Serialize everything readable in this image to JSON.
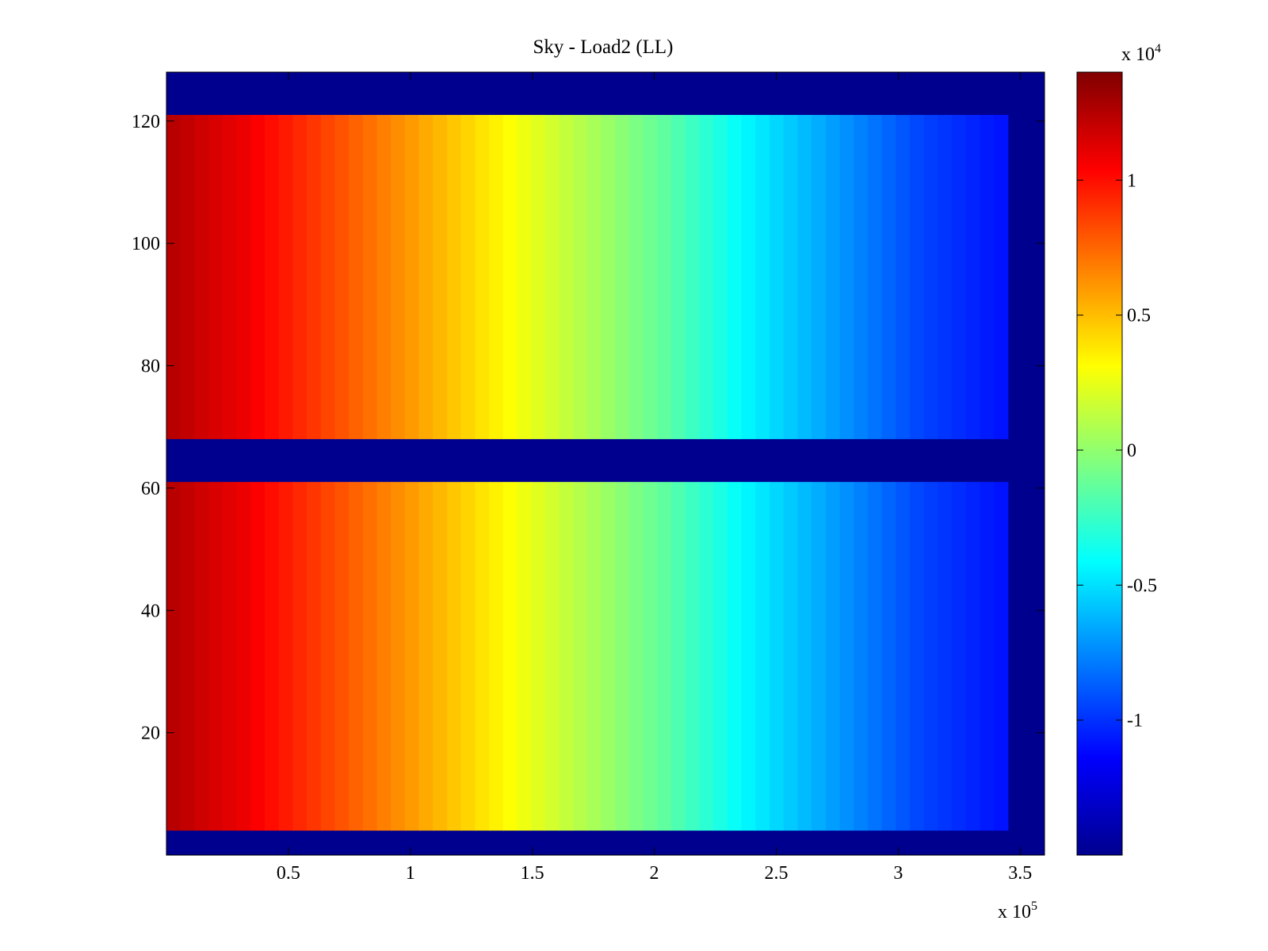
{
  "chart_data": {
    "type": "heatmap",
    "title": "Sky - Load2 (LL)",
    "xlabel": "",
    "ylabel": "",
    "x_multiplier_label": {
      "base": "x 10",
      "exponent": "5"
    },
    "xlim": [
      0,
      360000
    ],
    "ylim": [
      0,
      128
    ],
    "x_ticks": [
      50000,
      100000,
      150000,
      200000,
      250000,
      300000,
      350000
    ],
    "x_tick_labels": [
      "0.5",
      "1",
      "1.5",
      "2",
      "2.5",
      "3",
      "3.5"
    ],
    "y_ticks": [
      20,
      40,
      60,
      80,
      100,
      120
    ],
    "y_tick_labels": [
      "20",
      "40",
      "60",
      "80",
      "100",
      "120"
    ],
    "colormap": "jet",
    "background_color": "#00008F",
    "populated_row_ranges": [
      [
        4,
        61
      ],
      [
        68,
        121
      ]
    ],
    "populated_x_range": [
      0,
      345000
    ],
    "x_gradient": [
      {
        "x": 0,
        "value": 12500
      },
      {
        "x": 30000,
        "value": 11000
      },
      {
        "x": 65000,
        "value": 8500
      },
      {
        "x": 100000,
        "value": 6000
      },
      {
        "x": 135000,
        "value": 3500
      },
      {
        "x": 170000,
        "value": 1000
      },
      {
        "x": 205000,
        "value": -1500
      },
      {
        "x": 240000,
        "value": -4500
      },
      {
        "x": 275000,
        "value": -7000
      },
      {
        "x": 310000,
        "value": -9500
      },
      {
        "x": 345000,
        "value": -11000
      }
    ],
    "colorbar": {
      "range": [
        -15000,
        14000
      ],
      "ticks": [
        -10000,
        -5000,
        0,
        5000,
        10000
      ],
      "tick_labels": [
        "-1",
        "-0.5",
        "0",
        "0.5",
        "1"
      ],
      "multiplier_label": {
        "base": "x 10",
        "exponent": "4"
      }
    }
  }
}
